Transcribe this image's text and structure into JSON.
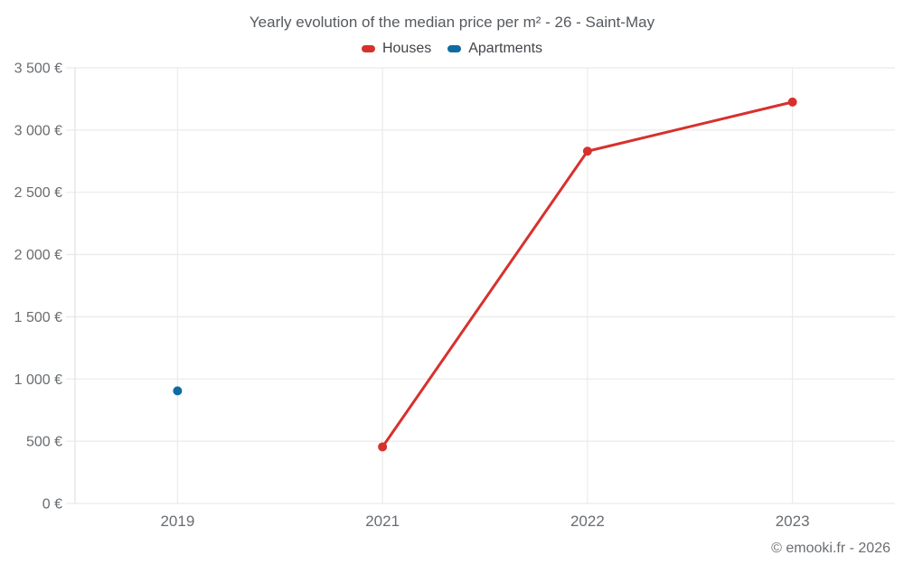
{
  "title": "Yearly evolution of the median price per m² - 26 - Saint-May",
  "footer": "© emooki.fr - 2026",
  "chart_data": {
    "type": "line",
    "title": "Yearly evolution of the median price per m² - 26 - Saint-May",
    "categories": [
      "2019",
      "2021",
      "2022",
      "2023"
    ],
    "series": [
      {
        "name": "Houses",
        "color": "#d7312d",
        "values": [
          null,
          455,
          2830,
          3225
        ]
      },
      {
        "name": "Apartments",
        "color": "#0f6ca3",
        "values": [
          905,
          null,
          null,
          null
        ]
      }
    ],
    "ylim": [
      0,
      3500
    ],
    "yticks": [
      0,
      500,
      1000,
      1500,
      2000,
      2500,
      3000,
      3500
    ],
    "ytick_labels": [
      "0 €",
      "500 €",
      "1 000 €",
      "1 500 €",
      "2 000 €",
      "2 500 €",
      "3 000 €",
      "3 500 €"
    ],
    "xlabel": "",
    "ylabel": "",
    "grid": true,
    "legend_position": "top",
    "colors": {
      "grid_line": "#ebebeb",
      "axis_line": "#e3e3e3",
      "tick_label": "#696c70",
      "title_text": "#56595e",
      "legend_text": "#404448"
    }
  }
}
